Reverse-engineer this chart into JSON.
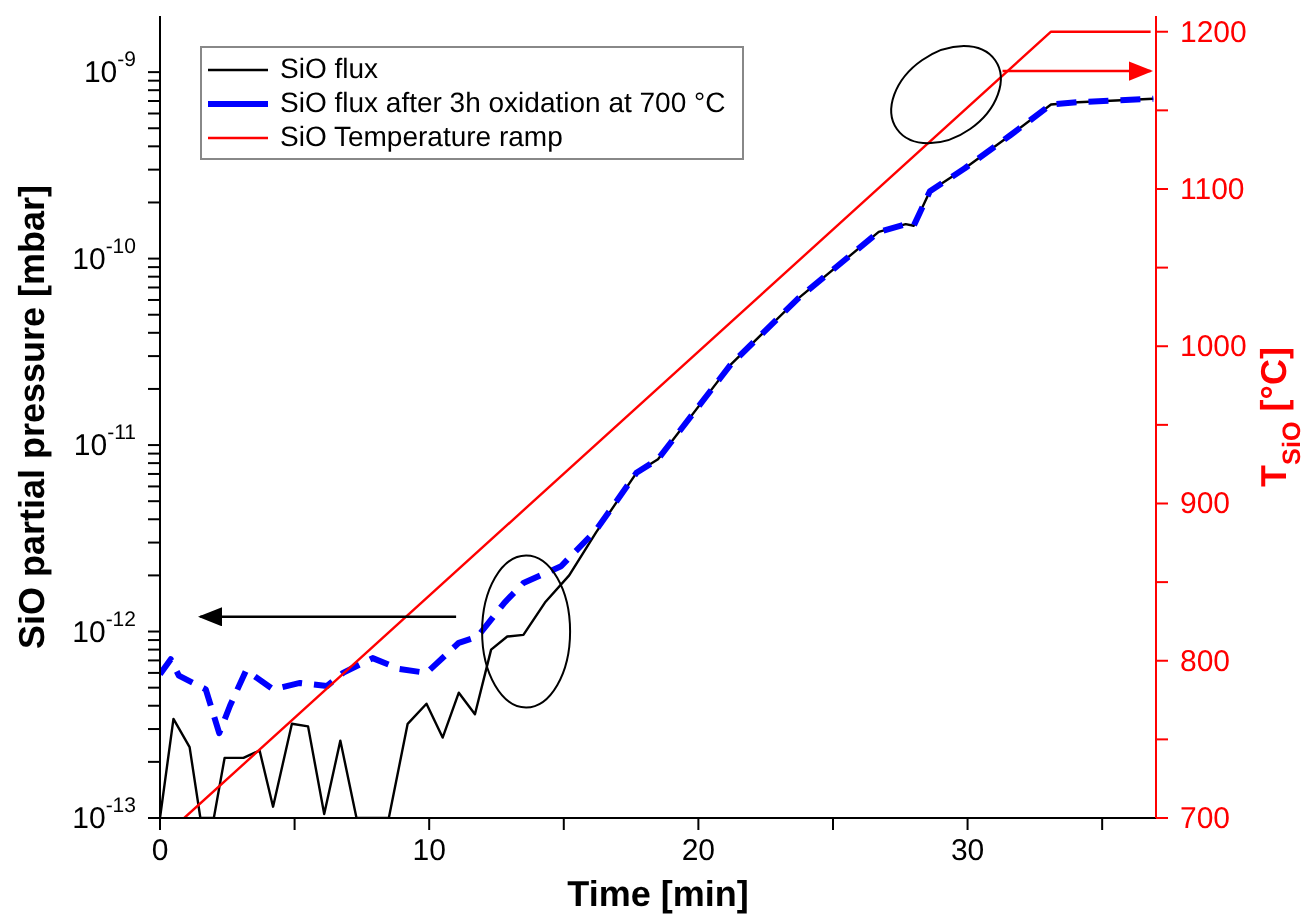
{
  "chart_data": {
    "type": "line",
    "xlabel": "Time [min]",
    "ylabel": "SiO partial pressure [mbar]",
    "y2label": "T$_{SiO}$ [°C]",
    "log": "y",
    "grid": false,
    "legend": "top left",
    "marker": "none",
    "xlim": [
      0,
      37
    ],
    "xticks": [
      0,
      {
        "value": 5,
        "label": null
      },
      10,
      {
        "value": 15,
        "label": null
      },
      20,
      {
        "value": 25,
        "label": null
      },
      30,
      {
        "value": 35,
        "label": null
      }
    ],
    "ylim": [
      1e-13,
      2e-09
    ],
    "yticks": [
      {
        "value": 1e-13,
        "label": "10$^{-13}$"
      },
      {
        "value": 2e-13,
        "label": null
      },
      {
        "value": 3e-13,
        "label": null
      },
      {
        "value": 4e-13,
        "label": null
      },
      {
        "value": 5e-13,
        "label": null
      },
      {
        "value": 6e-13,
        "label": null
      },
      {
        "value": 7e-13,
        "label": null
      },
      {
        "value": 8e-13,
        "label": null
      },
      {
        "value": 9e-13,
        "label": null
      },
      {
        "value": 1e-12,
        "label": "10$^{-12}$"
      },
      {
        "value": 2e-12,
        "label": null
      },
      {
        "value": 3e-12,
        "label": null
      },
      {
        "value": 4e-12,
        "label": null
      },
      {
        "value": 5e-12,
        "label": null
      },
      {
        "value": 6e-12,
        "label": null
      },
      {
        "value": 7e-12,
        "label": null
      },
      {
        "value": 8e-12,
        "label": null
      },
      {
        "value": 9e-12,
        "label": null
      },
      {
        "value": 1e-11,
        "label": "10$^{-11}$"
      },
      {
        "value": 2e-11,
        "label": null
      },
      {
        "value": 3e-11,
        "label": null
      },
      {
        "value": 4e-11,
        "label": null
      },
      {
        "value": 5e-11,
        "label": null
      },
      {
        "value": 6e-11,
        "label": null
      },
      {
        "value": 7e-11,
        "label": null
      },
      {
        "value": 8e-11,
        "label": null
      },
      {
        "value": 9e-11,
        "label": null
      },
      {
        "value": 1e-10,
        "label": "10$^{-10}$"
      },
      {
        "value": 2e-10,
        "label": null
      },
      {
        "value": 3e-10,
        "label": null
      },
      {
        "value": 4e-10,
        "label": null
      },
      {
        "value": 5e-10,
        "label": null
      },
      {
        "value": 6e-10,
        "label": null
      },
      {
        "value": 7e-10,
        "label": null
      },
      {
        "value": 8e-10,
        "label": null
      },
      {
        "value": 9e-10,
        "label": null
      },
      {
        "value": 1e-09,
        "label": "10$^{-9}$"
      }
    ],
    "y2lim": [
      700,
      1210
    ],
    "y2ticks": [
      700,
      {
        "value": 750,
        "label": null
      },
      800,
      {
        "value": 850,
        "label": null
      },
      900,
      {
        "value": 950,
        "label": null
      },
      1000,
      {
        "value": 1050,
        "label": null
      },
      1100,
      {
        "value": 1150,
        "label": null
      },
      1200
    ],
    "series": [
      {
        "name": "SiO flux",
        "color": "#000000",
        "line_style": "solid",
        "x": [
          0,
          0.5,
          1.1,
          1.5,
          2.0,
          2.4,
          3.1,
          3.7,
          4.2,
          4.9,
          5.5,
          6.1,
          6.7,
          7.3,
          8.5,
          9.2,
          9.9,
          10.5,
          11.1,
          11.7,
          12.3,
          12.9,
          13.5,
          14.3,
          15.2,
          16.2,
          17.7,
          18.5,
          21.2,
          23.7,
          26.7,
          27.7,
          28.0,
          28.6,
          29.9,
          31.6,
          33.1,
          34.1,
          36.9
        ],
        "values": [
          1e-13,
          3.4e-13,
          2.4e-13,
          1e-13,
          1e-13,
          2.1e-13,
          2.1e-13,
          2.3e-13,
          1.15e-13,
          3.2e-13,
          3.1e-13,
          1.05e-13,
          2.6e-13,
          1e-13,
          1e-13,
          3.2e-13,
          4.1e-13,
          2.7e-13,
          4.7e-13,
          3.6e-13,
          8e-13,
          9.4e-13,
          9.6e-13,
          1.43e-12,
          2e-12,
          3.4e-12,
          7.1e-12,
          8.4e-12,
          2.7e-11,
          6.1e-11,
          1.39e-10,
          1.53e-10,
          1.5e-10,
          2.3e-10,
          3.05e-10,
          4.6e-10,
          6.7e-10,
          6.9e-10,
          7.2e-10
        ]
      },
      {
        "name": "SiO flux after 3h oxidation at 700 °C",
        "color": "#0000ff",
        "line_style": "dashed",
        "x": [
          0,
          0.4,
          0.7,
          1.7,
          2.2,
          2.6,
          3.2,
          4.2,
          5.2,
          6.2,
          6.8,
          7.9,
          8.9,
          9.9,
          11.1,
          11.8,
          12.8,
          13.5,
          14.9,
          16.2,
          17.7,
          18.5,
          21.2,
          23.7,
          26.7,
          27.7,
          28.0,
          28.6,
          29.9,
          31.6,
          33.1,
          34.1,
          36.9
        ],
        "values": [
          5.9e-13,
          7.1e-13,
          5.8e-13,
          4.9e-13,
          2.85e-13,
          4e-13,
          6.2e-13,
          4.9e-13,
          5.3e-13,
          5.1e-13,
          6e-13,
          7.2e-13,
          6.3e-13,
          6e-13,
          8.7e-13,
          9.4e-13,
          1.43e-12,
          1.82e-12,
          2.24e-12,
          3.5e-12,
          7.1e-12,
          8.4e-12,
          2.7e-11,
          6.1e-11,
          1.39e-10,
          1.53e-10,
          1.5e-10,
          2.3e-10,
          3.05e-10,
          4.6e-10,
          6.7e-10,
          6.9e-10,
          7.2e-10
        ]
      },
      {
        "name": "SiO Temperature ramp",
        "color": "#ff0000",
        "line_style": "solid",
        "axis": "y2",
        "x": [
          0.9,
          33.1,
          36.8
        ],
        "values": [
          700,
          1200,
          1200
        ]
      }
    ]
  }
}
